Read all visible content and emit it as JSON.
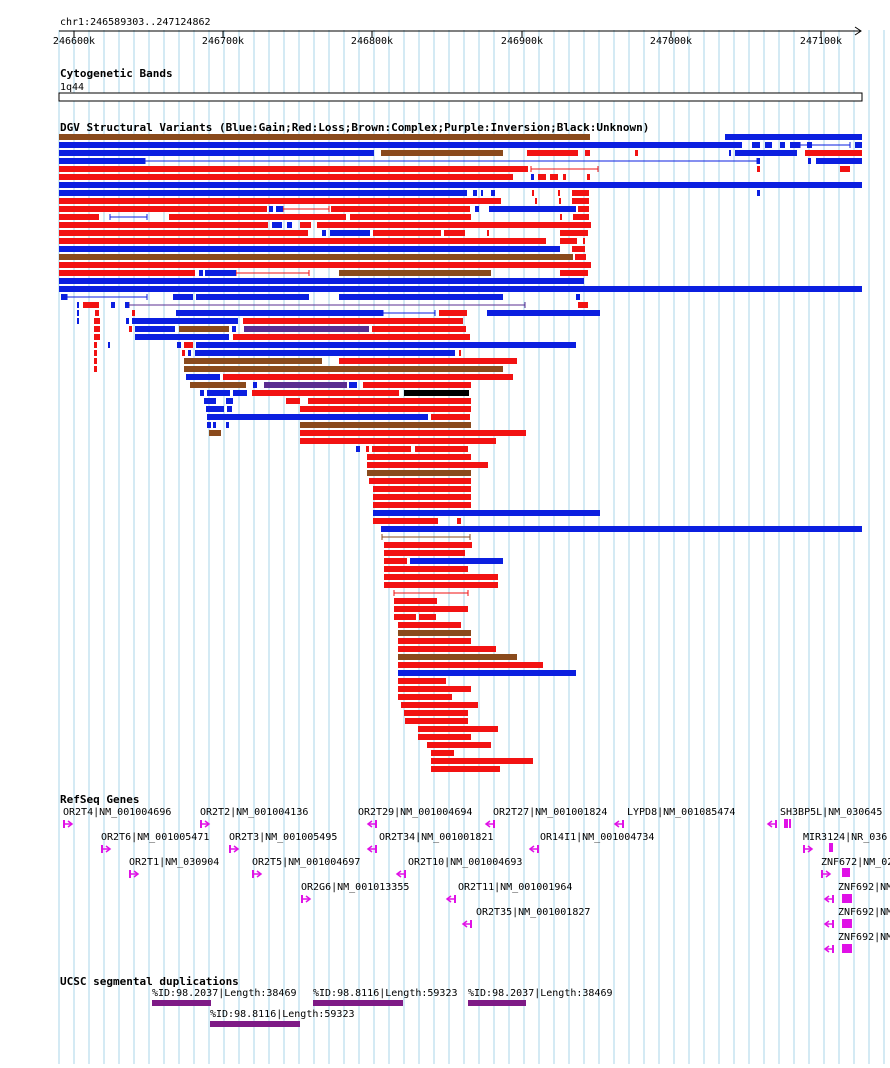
{
  "coords": "chr1:246589303..247124862",
  "ruler": {
    "ticks": [
      "246600k",
      "246700k",
      "246800k",
      "246900k",
      "247000k",
      "247100k"
    ]
  },
  "tracks": {
    "cyto": {
      "title": "Cytogenetic Bands",
      "band": "1q44"
    },
    "dgv": {
      "title": "DGV Structural Variants (Blue:Gain;Red:Loss;Brown:Complex;Purple:Inversion;Black:Unknown)"
    },
    "refseq": {
      "title": "RefSeq Genes"
    },
    "segdup": {
      "title": "UCSC segmental duplications"
    }
  },
  "colors": {
    "gain": "#0b1fe0",
    "loss": "#f21212",
    "complex": "#8a4a1c",
    "inversion": "#5a2d91",
    "unknown": "#000000",
    "gene": "#e011e6",
    "segdup": "#7e1a86",
    "grid": "#a9d4ea"
  },
  "genes": [
    {
      "label": "OR2T4|NM_001004696",
      "icon": "arrow-right"
    },
    {
      "label": "OR2T2|NM_001004136",
      "icon": "arrow-right"
    },
    {
      "label": "OR2T29|NM_001004694",
      "icon": "arrow-left"
    },
    {
      "label": "OR2T27|NM_001001824",
      "icon": "arrow-left"
    },
    {
      "label": "LYPD8|NM_001085474",
      "icon": "arrow-left"
    },
    {
      "label": "SH3BP5L|NM_030645",
      "icon": "arrow-left"
    },
    {
      "label": "OR2T6|NM_001005471",
      "icon": "arrow-right"
    },
    {
      "label": "OR2T3|NM_001005495",
      "icon": "arrow-right"
    },
    {
      "label": "OR2T34|NM_001001821",
      "icon": "arrow-left"
    },
    {
      "label": "OR14I1|NM_001004734",
      "icon": "arrow-left"
    },
    {
      "label": "MIR3124|NR_036",
      "icon": "arrow-right"
    },
    {
      "label": "OR2T1|NM_030904",
      "icon": "arrow-right"
    },
    {
      "label": "OR2T5|NM_001004697",
      "icon": "arrow-right"
    },
    {
      "label": "OR2T10|NM_001004693",
      "icon": "arrow-left"
    },
    {
      "label": "ZNF672|NM_02",
      "icon": "arrow-right"
    },
    {
      "label": "OR2G6|NM_001013355",
      "icon": "arrow-right"
    },
    {
      "label": "OR2T11|NM_001001964",
      "icon": "arrow-left"
    },
    {
      "label": "ZNF692|NM",
      "icon": "arrow-left"
    },
    {
      "label": "OR2T35|NM_001001827",
      "icon": "arrow-left"
    },
    {
      "label": "ZNF692|NM",
      "icon": "arrow-left"
    },
    {
      "label": "ZNF692|NM",
      "icon": "arrow-left"
    }
  ],
  "segdups": [
    {
      "label": "%ID:98.2037|Length:38469"
    },
    {
      "label": "%ID:98.8116|Length:59323"
    },
    {
      "label": "%ID:98.2037|Length:38469"
    },
    {
      "label": "%ID:98.8116|Length:59323"
    }
  ]
}
